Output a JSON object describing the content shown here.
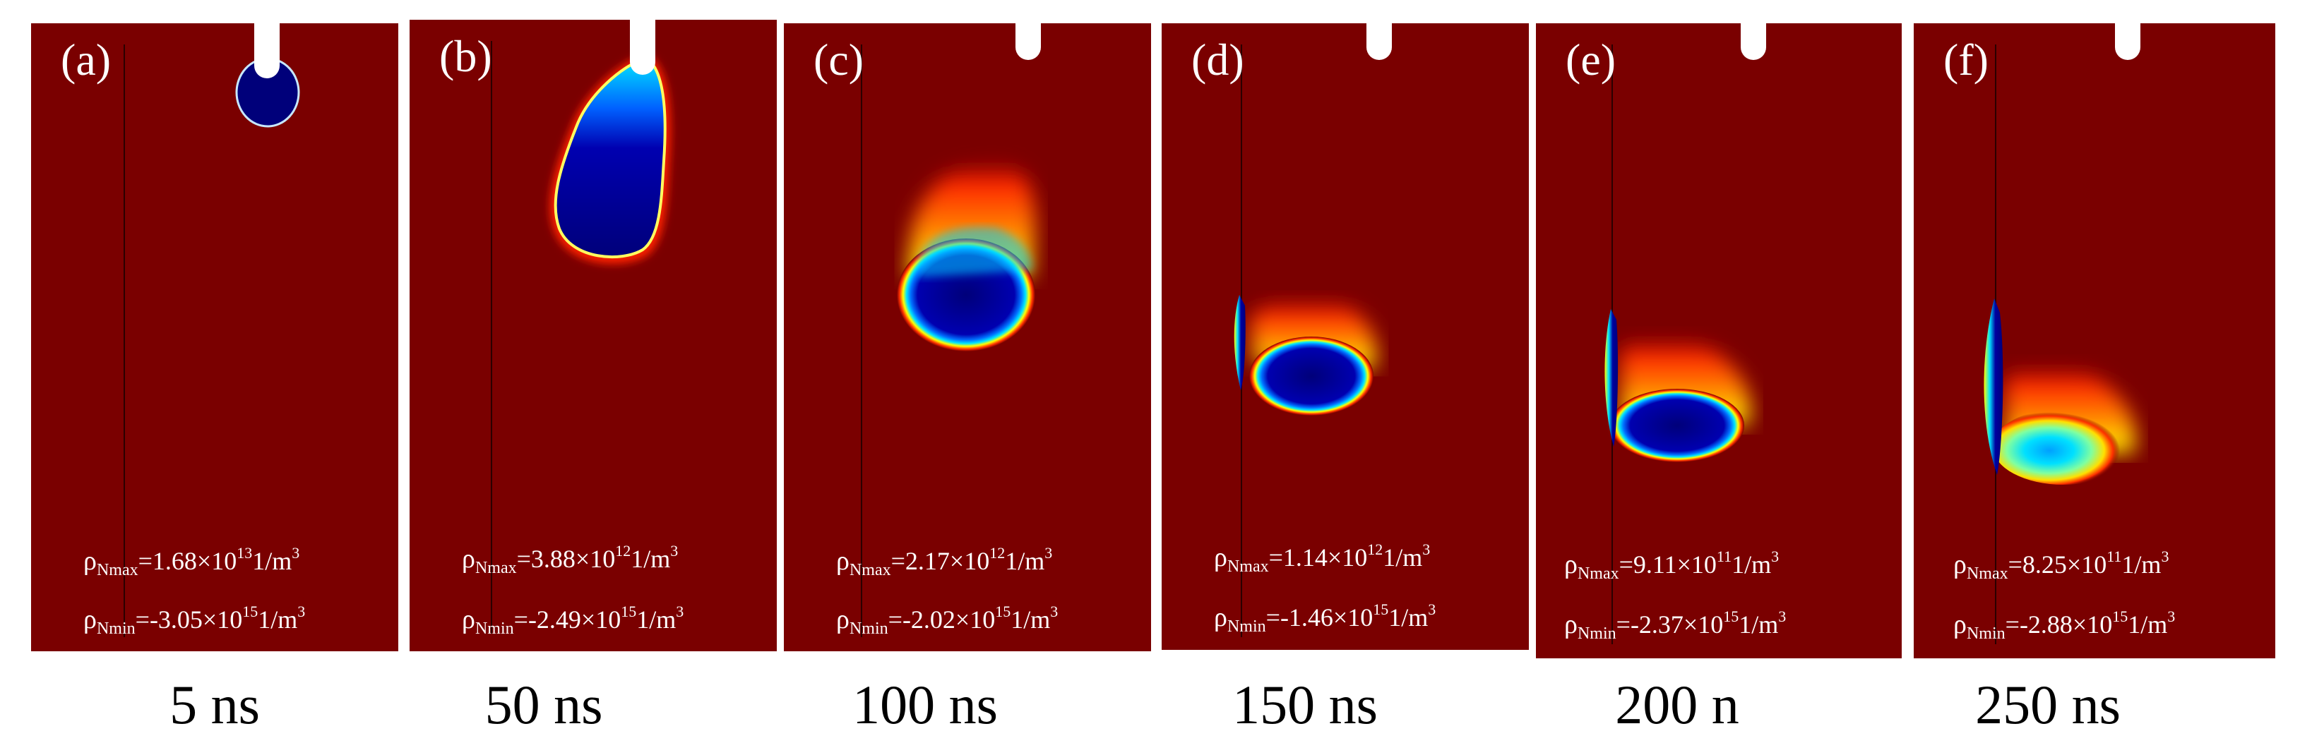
{
  "colors": {
    "background": "#7a0000",
    "electrode": "#ffffff",
    "ring": [
      "#00e5ff",
      "#ffff00",
      "#ff2000"
    ],
    "core": "#00007a"
  },
  "panels": [
    {
      "label": "(a)",
      "time": "5 ns",
      "max": {
        "sym": "ρ",
        "sub": "Nmax",
        "coef": "=1.68×10",
        "exp": "13",
        "unit": "1/m",
        "unitexp": "3"
      },
      "min": {
        "sym": "ρ",
        "sub": "Nmin",
        "coef": "=-3.05×10",
        "exp": "15",
        "unit": "1/m",
        "unitexp": "3"
      }
    },
    {
      "label": "(b)",
      "time": "50 ns",
      "max": {
        "sym": "ρ",
        "sub": "Nmax",
        "coef": "=3.88×10",
        "exp": "12",
        "unit": "1/m",
        "unitexp": "3"
      },
      "min": {
        "sym": "ρ",
        "sub": "Nmin",
        "coef": "=-2.49×10",
        "exp": "15",
        "unit": "1/m",
        "unitexp": "3"
      }
    },
    {
      "label": "(c)",
      "time": "100 ns",
      "max": {
        "sym": "ρ",
        "sub": "Nmax",
        "coef": "=2.17×10",
        "exp": "12",
        "unit": "1/m",
        "unitexp": "3"
      },
      "min": {
        "sym": "ρ",
        "sub": "Nmin",
        "coef": "=-2.02×10",
        "exp": "15",
        "unit": "1/m",
        "unitexp": "3"
      }
    },
    {
      "label": "(d)",
      "time": "150 ns",
      "max": {
        "sym": "ρ",
        "sub": "Nmax",
        "coef": "=1.14×10",
        "exp": "12",
        "unit": "1/m",
        "unitexp": "3"
      },
      "min": {
        "sym": "ρ",
        "sub": "Nmin",
        "coef": "=-1.46×10",
        "exp": "15",
        "unit": "1/m",
        "unitexp": "3"
      }
    },
    {
      "label": "(e)",
      "time": "200 n",
      "max": {
        "sym": "ρ",
        "sub": "Nmax",
        "coef": "=9.11×10",
        "exp": "11",
        "unit": "1/m",
        "unitexp": "3"
      },
      "min": {
        "sym": "ρ",
        "sub": "Nmin",
        "coef": "=-2.37×10",
        "exp": "15",
        "unit": "1/m",
        "unitexp": "3"
      }
    },
    {
      "label": "(f)",
      "time": "250 ns",
      "max": {
        "sym": "ρ",
        "sub": "Nmax",
        "coef": "=8.25×10",
        "exp": "11",
        "unit": "1/m",
        "unitexp": "3"
      },
      "min": {
        "sym": "ρ",
        "sub": "Nmin",
        "coef": "=-2.88×10",
        "exp": "15",
        "unit": "1/m",
        "unitexp": "3"
      }
    }
  ]
}
